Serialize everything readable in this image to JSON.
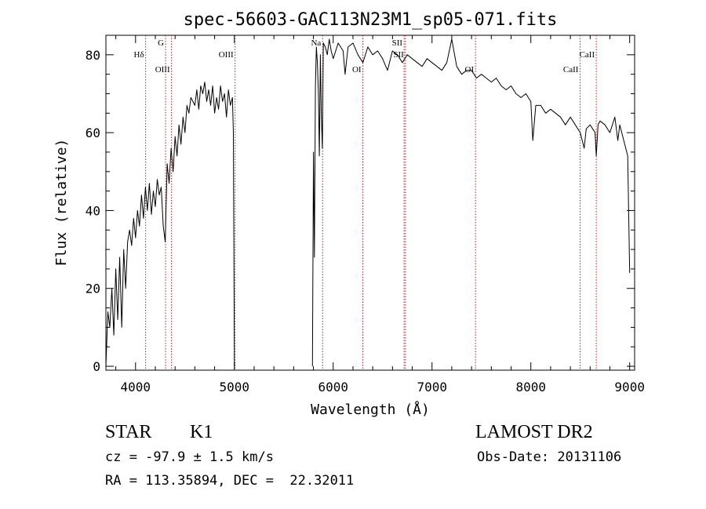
{
  "chart_data": {
    "type": "line",
    "title": "spec-56603-GAC113N23M1_sp05-071.fits",
    "xlabel": "Wavelength (Å)",
    "ylabel": "Flux (relative)",
    "xlim": [
      3700,
      9050
    ],
    "ylim": [
      -1,
      85
    ],
    "xticks": [
      4000,
      5000,
      6000,
      7000,
      8000,
      9000
    ],
    "xtick_labels": [
      "4000",
      "5000",
      "6000",
      "7000",
      "8000",
      "9000"
    ],
    "yticks": [
      0,
      20,
      40,
      60,
      80
    ],
    "ytick_labels": [
      "0",
      "20",
      "40",
      "60",
      "80"
    ],
    "grid": false,
    "line_color": "#000000",
    "line_marker_color": "#b22222",
    "segments": [
      {
        "x": [
          3700,
          3720,
          3740,
          3760,
          3780,
          3800,
          3820,
          3840,
          3860,
          3880,
          3900,
          3920,
          3940,
          3960,
          3980,
          4000,
          4020,
          4040,
          4060,
          4080,
          4100,
          4120,
          4140,
          4160,
          4180,
          4200,
          4220,
          4240,
          4260,
          4280,
          4300,
          4320,
          4340,
          4360,
          4380,
          4400,
          4420,
          4440,
          4460,
          4480,
          4500,
          4520,
          4540,
          4560,
          4580,
          4600,
          4620,
          4640,
          4660,
          4680,
          4700,
          4720,
          4740,
          4760,
          4780,
          4800,
          4820,
          4840,
          4860,
          4880,
          4900,
          4920,
          4940,
          4960,
          4980,
          4990,
          5000
        ],
        "y": [
          0,
          14,
          10,
          20,
          8,
          25,
          12,
          28,
          10,
          30,
          20,
          32,
          35,
          31,
          38,
          33,
          40,
          36,
          44,
          38,
          46,
          40,
          47,
          39,
          45,
          41,
          48,
          44,
          46,
          36,
          32,
          52,
          47,
          56,
          50,
          59,
          54,
          62,
          57,
          64,
          60,
          67,
          65,
          69,
          68,
          67,
          71,
          66,
          72,
          70,
          73,
          68,
          71,
          67,
          72,
          65,
          69,
          66,
          72,
          68,
          70,
          64,
          71,
          67,
          69,
          60,
          0
        ]
      },
      {
        "x": [
          5790,
          5800,
          5810,
          5820,
          5830,
          5840,
          5850,
          5860,
          5870,
          5880,
          5890,
          5900,
          5920,
          5940,
          5960,
          5980,
          6000,
          6050,
          6100,
          6120,
          6150,
          6200,
          6250,
          6300,
          6350,
          6400,
          6450,
          6500,
          6550,
          6600,
          6650,
          6700,
          6750,
          6800,
          6850,
          6900,
          6950,
          7000,
          7050,
          7100,
          7150,
          7200,
          7250,
          7300,
          7350,
          7400,
          7450,
          7500,
          7550,
          7600,
          7650,
          7700,
          7750,
          7800,
          7850,
          7900,
          7950,
          8000,
          8020,
          8050,
          8100,
          8150,
          8200,
          8250,
          8300,
          8350,
          8400,
          8450,
          8500,
          8540,
          8560,
          8600,
          8650,
          8662,
          8680,
          8700,
          8750,
          8800,
          8850,
          8880,
          8900,
          8950,
          8980,
          9000
        ],
        "y": [
          0,
          55,
          28,
          72,
          82,
          78,
          70,
          54,
          80,
          65,
          56,
          83,
          82,
          80,
          84,
          81,
          79,
          83,
          81,
          75,
          82,
          83,
          80,
          78,
          82,
          80,
          81,
          79,
          76,
          81,
          80,
          78,
          80,
          79,
          78,
          77,
          79,
          78,
          77,
          76,
          78,
          84,
          77,
          75,
          76,
          76,
          74,
          75,
          74,
          73,
          74,
          72,
          71,
          72,
          70,
          69,
          70,
          68,
          58,
          67,
          67,
          65,
          66,
          65,
          64,
          62,
          64,
          62,
          60,
          56,
          61,
          62,
          60,
          54,
          62,
          63,
          62,
          60,
          64,
          58,
          62,
          57,
          54,
          24
        ]
      }
    ],
    "lines": [
      {
        "label": "Hδ",
        "x": 4102
      },
      {
        "label": "G",
        "x": 4304
      },
      {
        "label": "OIII",
        "x": 4364
      },
      {
        "label": "OIII",
        "x": 5007
      },
      {
        "label": "Na",
        "x": 5893
      },
      {
        "label": "OI",
        "x": 6300
      },
      {
        "label": "SII",
        "x": 6717
      },
      {
        "label": "SII",
        "x": 6731
      },
      {
        "label": "OI",
        "x": 7440
      },
      {
        "label": "CaII",
        "x": 8498
      },
      {
        "label": "CaII",
        "x": 8662
      }
    ]
  },
  "info": {
    "object_class": "STAR",
    "subclass": "K1",
    "redshift": "cz = -97.9 ± 1.5 km/s",
    "coords": "RA = 113.35894, DEC =  22.32011",
    "survey": "LAMOST DR2",
    "obs_date": "Obs-Date: 20131106"
  }
}
